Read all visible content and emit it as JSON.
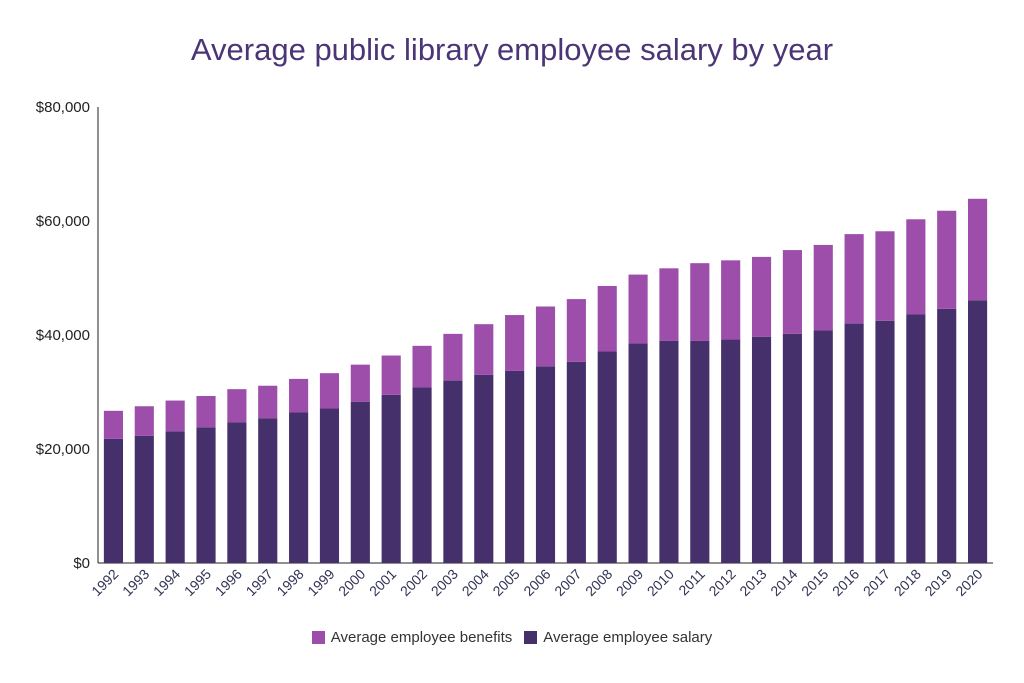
{
  "colors": {
    "benefits": "#9d4daa",
    "salary": "#45306b",
    "title": "#4b3577",
    "axis": "#222222"
  },
  "chart_data": {
    "type": "bar",
    "stacked": true,
    "title": "Average public library employee salary by year",
    "xlabel": "",
    "ylabel": "",
    "ylim": [
      0,
      80000
    ],
    "yticks": [
      0,
      20000,
      40000,
      60000,
      80000
    ],
    "ytick_labels": [
      "$0",
      "$20,000",
      "$40,000",
      "$60,000",
      "$80,000"
    ],
    "grid": false,
    "legend_position": "bottom",
    "categories": [
      "1992",
      "1993",
      "1994",
      "1995",
      "1996",
      "1997",
      "1998",
      "1999",
      "2000",
      "2001",
      "2002",
      "2003",
      "2004",
      "2005",
      "2006",
      "2007",
      "2008",
      "2009",
      "2010",
      "2011",
      "2012",
      "2013",
      "2014",
      "2015",
      "2016",
      "2017",
      "2018",
      "2019",
      "2020"
    ],
    "series": [
      {
        "name": "Average employee salary",
        "values": [
          21800,
          22300,
          23100,
          23800,
          24700,
          25400,
          26400,
          27100,
          28300,
          29500,
          30800,
          32000,
          33000,
          33700,
          34500,
          35300,
          37100,
          38500,
          39000,
          39000,
          39200,
          39700,
          40200,
          40800,
          42000,
          42500,
          43600,
          44600,
          46100
        ]
      },
      {
        "name": "Average employee benefits",
        "values": [
          4900,
          5200,
          5400,
          5500,
          5800,
          5700,
          5900,
          6200,
          6500,
          6900,
          7300,
          8200,
          8900,
          9800,
          10500,
          11000,
          11500,
          12100,
          12700,
          13600,
          13900,
          14000,
          14700,
          15000,
          15700,
          15700,
          16700,
          17200,
          17800
        ]
      }
    ]
  },
  "legend": {
    "benefits_label": "Average employee benefits",
    "salary_label": "Average employee salary"
  }
}
